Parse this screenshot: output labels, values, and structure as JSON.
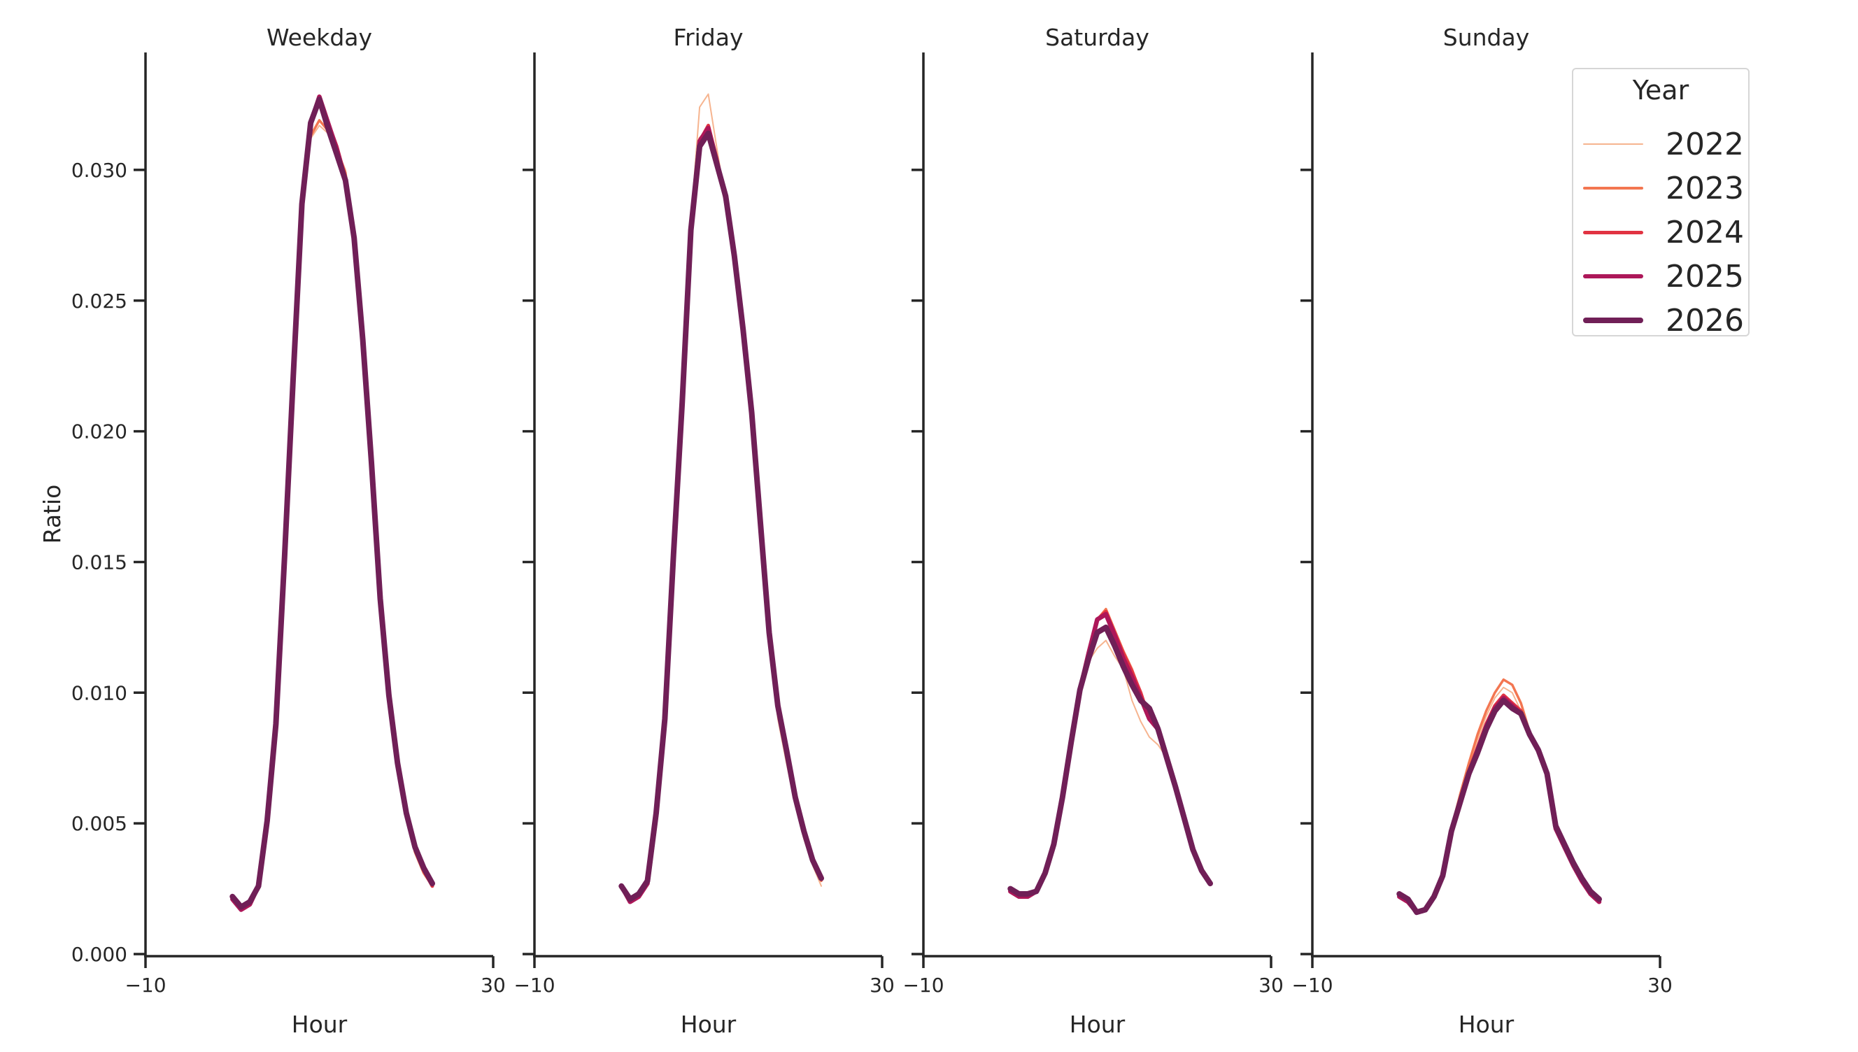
{
  "chart_data": {
    "type": "line",
    "title": "",
    "xlabel": "Hour",
    "ylabel": "Ratio",
    "xlim": [
      -10,
      30
    ],
    "ylim": [
      0.0,
      0.0345
    ],
    "x_ticks": [
      -10,
      30
    ],
    "x_tick_labels": [
      "−10",
      "30"
    ],
    "y_ticks": [
      0.0,
      0.005,
      0.01,
      0.015,
      0.02,
      0.025,
      0.03
    ],
    "y_tick_labels": [
      "0.000",
      "0.005",
      "0.010",
      "0.015",
      "0.020",
      "0.025",
      "0.030"
    ],
    "grid": false,
    "legend": {
      "title": "Year",
      "position": "upper right",
      "entries": [
        "2022",
        "2023",
        "2024",
        "2025",
        "2026"
      ]
    },
    "x": [
      0,
      1,
      2,
      3,
      4,
      5,
      6,
      7,
      8,
      9,
      10,
      11,
      12,
      13,
      14,
      15,
      16,
      17,
      18,
      19,
      20,
      21,
      22,
      23
    ],
    "series_styles": [
      {
        "name": "2022",
        "color": "#F6B48F",
        "width": 2
      },
      {
        "name": "2023",
        "color": "#F37651",
        "width": 3.5
      },
      {
        "name": "2024",
        "color": "#E13342",
        "width": 5
      },
      {
        "name": "2025",
        "color": "#AD1759",
        "width": 6.5
      },
      {
        "name": "2026",
        "color": "#701F57",
        "width": 8
      }
    ],
    "panels": [
      {
        "title": "Weekday",
        "series": [
          {
            "name": "2022",
            "values": [
              0.0021,
              0.0018,
              0.002,
              0.0026,
              0.0051,
              0.0088,
              0.0152,
              0.0221,
              0.0284,
              0.0312,
              0.0317,
              0.0314,
              0.0308,
              0.03,
              0.0278,
              0.0238,
              0.019,
              0.0138,
              0.01,
              0.0072,
              0.0053,
              0.0039,
              0.0031,
              0.0026
            ]
          },
          {
            "name": "2023",
            "values": [
              0.0021,
              0.0018,
              0.002,
              0.0026,
              0.0051,
              0.0088,
              0.0152,
              0.0221,
              0.0285,
              0.0313,
              0.0319,
              0.0315,
              0.0308,
              0.0299,
              0.0277,
              0.0237,
              0.0189,
              0.0137,
              0.0099,
              0.0072,
              0.0053,
              0.0039,
              0.0031,
              0.0026
            ]
          },
          {
            "name": "2024",
            "values": [
              0.0021,
              0.0017,
              0.0019,
              0.0026,
              0.0051,
              0.0088,
              0.0152,
              0.0221,
              0.0287,
              0.0318,
              0.0327,
              0.0318,
              0.0309,
              0.0297,
              0.0275,
              0.0236,
              0.0188,
              0.0136,
              0.0099,
              0.0073,
              0.0054,
              0.004,
              0.0032,
              0.0026
            ]
          },
          {
            "name": "2025",
            "values": [
              0.0021,
              0.0017,
              0.0019,
              0.0026,
              0.0051,
              0.0088,
              0.0152,
              0.0221,
              0.0287,
              0.0318,
              0.0328,
              0.0318,
              0.0308,
              0.0296,
              0.0274,
              0.0235,
              0.0188,
              0.0136,
              0.0099,
              0.0073,
              0.0054,
              0.0041,
              0.0033,
              0.0027
            ]
          },
          {
            "name": "2026",
            "values": [
              0.0022,
              0.0018,
              0.002,
              0.0026,
              0.0051,
              0.0088,
              0.0152,
              0.0221,
              0.0287,
              0.0318,
              0.0327,
              0.0316,
              0.0306,
              0.0296,
              0.0274,
              0.0235,
              0.0188,
              0.0136,
              0.0099,
              0.0073,
              0.0054,
              0.0041,
              0.0033,
              0.0027
            ]
          }
        ]
      },
      {
        "title": "Friday",
        "series": [
          {
            "name": "2022",
            "values": [
              0.0026,
              0.002,
              0.0022,
              0.0027,
              0.0053,
              0.009,
              0.0155,
              0.0214,
              0.028,
              0.0324,
              0.0329,
              0.0308,
              0.0288,
              0.0266,
              0.0238,
              0.0206,
              0.0164,
              0.012,
              0.009,
              0.0073,
              0.0057,
              0.0044,
              0.0034,
              0.0026
            ]
          },
          {
            "name": "2023",
            "values": [
              0.0026,
              0.002,
              0.0022,
              0.0027,
              0.0053,
              0.009,
              0.0154,
              0.0213,
              0.0278,
              0.0312,
              0.0316,
              0.0305,
              0.0289,
              0.0267,
              0.0239,
              0.0207,
              0.0165,
              0.0122,
              0.0093,
              0.0075,
              0.0058,
              0.0045,
              0.0035,
              0.0028
            ]
          },
          {
            "name": "2024",
            "values": [
              0.0026,
              0.002,
              0.0022,
              0.0027,
              0.0053,
              0.009,
              0.0153,
              0.0212,
              0.0277,
              0.0311,
              0.0317,
              0.0304,
              0.0289,
              0.0267,
              0.0239,
              0.0207,
              0.0165,
              0.0123,
              0.0095,
              0.0077,
              0.0059,
              0.0046,
              0.0036,
              0.0029
            ]
          },
          {
            "name": "2025",
            "values": [
              0.0026,
              0.002,
              0.0022,
              0.0027,
              0.0053,
              0.009,
              0.0153,
              0.0212,
              0.0277,
              0.0311,
              0.0316,
              0.0303,
              0.0289,
              0.0267,
              0.0239,
              0.0207,
              0.0165,
              0.0123,
              0.0095,
              0.0078,
              0.006,
              0.0047,
              0.0036,
              0.0029
            ]
          },
          {
            "name": "2026",
            "values": [
              0.0026,
              0.0021,
              0.0023,
              0.0028,
              0.0054,
              0.009,
              0.0153,
              0.0211,
              0.0277,
              0.0309,
              0.0314,
              0.0302,
              0.029,
              0.0267,
              0.0239,
              0.0207,
              0.0165,
              0.0123,
              0.0095,
              0.0078,
              0.006,
              0.0047,
              0.0036,
              0.0029
            ]
          }
        ]
      },
      {
        "title": "Saturday",
        "series": [
          {
            "name": "2022",
            "values": [
              0.0024,
              0.0022,
              0.0022,
              0.0024,
              0.0031,
              0.0042,
              0.006,
              0.0081,
              0.0101,
              0.0112,
              0.0117,
              0.012,
              0.0114,
              0.0109,
              0.0097,
              0.0089,
              0.0083,
              0.008,
              0.0075,
              0.0064,
              0.0052,
              0.004,
              0.0032,
              0.0027
            ]
          },
          {
            "name": "2023",
            "values": [
              0.0024,
              0.0022,
              0.0022,
              0.0024,
              0.0031,
              0.0042,
              0.006,
              0.0081,
              0.0101,
              0.0115,
              0.0128,
              0.0132,
              0.0124,
              0.0116,
              0.0109,
              0.01,
              0.009,
              0.0087,
              0.0076,
              0.0064,
              0.0052,
              0.004,
              0.0032,
              0.0027
            ]
          },
          {
            "name": "2024",
            "values": [
              0.0024,
              0.0022,
              0.0022,
              0.0024,
              0.0031,
              0.0042,
              0.006,
              0.0081,
              0.0101,
              0.0115,
              0.0128,
              0.0131,
              0.0123,
              0.0115,
              0.0108,
              0.01,
              0.009,
              0.0087,
              0.0076,
              0.0064,
              0.0052,
              0.004,
              0.0032,
              0.0027
            ]
          },
          {
            "name": "2025",
            "values": [
              0.0024,
              0.0022,
              0.0022,
              0.0024,
              0.0031,
              0.0042,
              0.006,
              0.0081,
              0.0101,
              0.0115,
              0.0128,
              0.013,
              0.0122,
              0.0113,
              0.0106,
              0.0098,
              0.009,
              0.0086,
              0.0075,
              0.0064,
              0.0052,
              0.004,
              0.0032,
              0.0027
            ]
          },
          {
            "name": "2026",
            "values": [
              0.0025,
              0.0023,
              0.0023,
              0.0024,
              0.0031,
              0.0042,
              0.006,
              0.0081,
              0.0101,
              0.0113,
              0.0123,
              0.0125,
              0.0118,
              0.011,
              0.0103,
              0.0097,
              0.0094,
              0.0086,
              0.0075,
              0.0064,
              0.0052,
              0.004,
              0.0032,
              0.0027
            ]
          }
        ]
      },
      {
        "title": "Sunday",
        "series": [
          {
            "name": "2022",
            "values": [
              0.0022,
              0.002,
              0.0016,
              0.0017,
              0.0022,
              0.003,
              0.0047,
              0.006,
              0.0072,
              0.0082,
              0.0091,
              0.0098,
              0.0102,
              0.01,
              0.0093,
              0.0084,
              0.0078,
              0.0069,
              0.0049,
              0.0042,
              0.0035,
              0.0029,
              0.0024,
              0.0021
            ]
          },
          {
            "name": "2023",
            "values": [
              0.0022,
              0.002,
              0.0016,
              0.0017,
              0.0022,
              0.003,
              0.0048,
              0.0061,
              0.0073,
              0.0084,
              0.0093,
              0.01,
              0.0105,
              0.0103,
              0.0096,
              0.0085,
              0.0078,
              0.0069,
              0.0049,
              0.0042,
              0.0035,
              0.0029,
              0.0024,
              0.0021
            ]
          },
          {
            "name": "2024",
            "values": [
              0.0022,
              0.002,
              0.0016,
              0.0017,
              0.0022,
              0.003,
              0.0047,
              0.0059,
              0.007,
              0.0079,
              0.0088,
              0.0095,
              0.0099,
              0.0096,
              0.0093,
              0.0084,
              0.0078,
              0.0069,
              0.0048,
              0.0041,
              0.0034,
              0.0028,
              0.0023,
              0.002
            ]
          },
          {
            "name": "2025",
            "values": [
              0.0022,
              0.002,
              0.0016,
              0.0017,
              0.0022,
              0.003,
              0.0047,
              0.0058,
              0.0069,
              0.0078,
              0.0087,
              0.0094,
              0.0098,
              0.0095,
              0.0092,
              0.0084,
              0.0078,
              0.0069,
              0.0048,
              0.0041,
              0.0034,
              0.0028,
              0.0023,
              0.002
            ]
          },
          {
            "name": "2026",
            "values": [
              0.0023,
              0.0021,
              0.0016,
              0.0017,
              0.0022,
              0.003,
              0.0047,
              0.0058,
              0.0069,
              0.0077,
              0.0086,
              0.0093,
              0.0097,
              0.0094,
              0.0092,
              0.0084,
              0.0078,
              0.0069,
              0.0049,
              0.0042,
              0.0035,
              0.0029,
              0.0024,
              0.0021
            ]
          }
        ]
      }
    ]
  },
  "figure": {
    "panel_titles": [
      "Weekday",
      "Friday",
      "Saturday",
      "Sunday"
    ],
    "xlabel": "Hour",
    "ylabel": "Ratio",
    "legend_title": "Year",
    "legend_entries": [
      "2022",
      "2023",
      "2024",
      "2025",
      "2026"
    ]
  }
}
